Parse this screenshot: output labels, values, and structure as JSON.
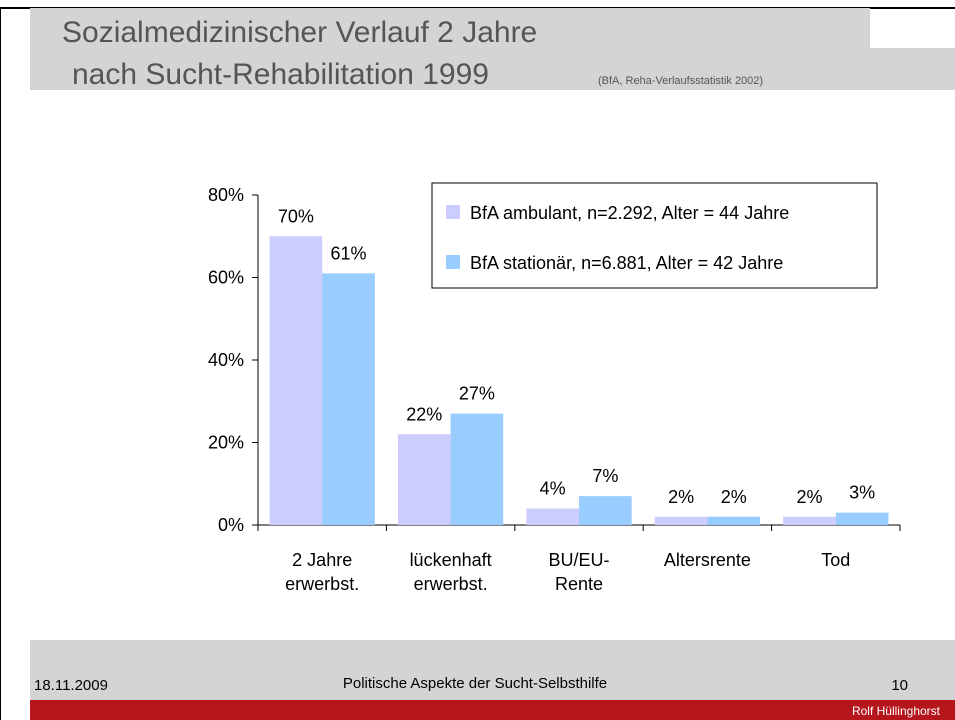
{
  "header": {
    "title_lines": [
      "Sozialmedizinischer Verlauf 2 Jahre",
      "nach Sucht-Rehabilitation 1999"
    ],
    "source": "(BfA, Reha-Verlaufsstatistik 2002)"
  },
  "footer": {
    "date": "18.11.2009",
    "text": "Politische Aspekte der Sucht-Selbsthilfe",
    "page": "10",
    "author": "Rolf Hüllinghorst"
  },
  "chart_data": {
    "type": "bar",
    "categories": [
      [
        "2 Jahre",
        "erwerbst."
      ],
      [
        "lückenhaft",
        "erwerbst."
      ],
      [
        "BU/EU-",
        "Rente"
      ],
      [
        "Altersrente"
      ],
      [
        "Tod"
      ]
    ],
    "series": [
      {
        "name": "BfA ambulant, n=2.292, Alter = 44 Jahre",
        "color": "#ccccff",
        "values": [
          70,
          22,
          4,
          2,
          2
        ],
        "value_labels": [
          "70%",
          "22%",
          "4%",
          "2%",
          "2%"
        ]
      },
      {
        "name": "BfA stationär, n=6.881, Alter = 42 Jahre",
        "color": "#99ccff",
        "values": [
          61,
          27,
          7,
          2,
          3
        ],
        "value_labels": [
          "61%",
          "27%",
          "7%",
          "2%",
          "3%"
        ]
      }
    ],
    "ylim": [
      0,
      80
    ],
    "yticks": [
      {
        "value": 0,
        "label": "0%"
      },
      {
        "value": 20,
        "label": "20%"
      },
      {
        "value": 40,
        "label": "40%"
      },
      {
        "value": 60,
        "label": "60%"
      },
      {
        "value": 80,
        "label": "80%"
      }
    ],
    "legend": "top-right"
  }
}
